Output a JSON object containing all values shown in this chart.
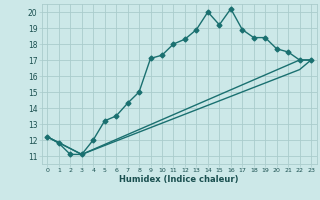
{
  "title": "",
  "xlabel": "Humidex (Indice chaleur)",
  "background_color": "#cce8e8",
  "grid_color": "#aacccc",
  "line_color": "#1a7070",
  "xlim": [
    -0.5,
    23.5
  ],
  "ylim": [
    10.5,
    20.5
  ],
  "xticks": [
    0,
    1,
    2,
    3,
    4,
    5,
    6,
    7,
    8,
    9,
    10,
    11,
    12,
    13,
    14,
    15,
    16,
    17,
    18,
    19,
    20,
    21,
    22,
    23
  ],
  "yticks": [
    11,
    12,
    13,
    14,
    15,
    16,
    17,
    18,
    19,
    20
  ],
  "line1_x": [
    0,
    1,
    2,
    3,
    4,
    5,
    6,
    7,
    8,
    9,
    10,
    11,
    12,
    13,
    14,
    15,
    16,
    17,
    18,
    19,
    20,
    21,
    22,
    23
  ],
  "line1_y": [
    12.2,
    11.8,
    11.1,
    11.1,
    12.0,
    13.2,
    13.5,
    14.3,
    15.0,
    17.1,
    17.3,
    18.0,
    18.3,
    18.9,
    20.0,
    19.2,
    20.2,
    18.9,
    18.4,
    18.4,
    17.7,
    17.5,
    17.0,
    17.0
  ],
  "line2_x": [
    0,
    3,
    22,
    23
  ],
  "line2_y": [
    12.2,
    11.1,
    17.0,
    17.0
  ],
  "line3_x": [
    0,
    3,
    22,
    23
  ],
  "line3_y": [
    12.2,
    11.1,
    16.4,
    17.0
  ],
  "marker": "D",
  "markersize": 2.5,
  "linewidth": 1.0
}
